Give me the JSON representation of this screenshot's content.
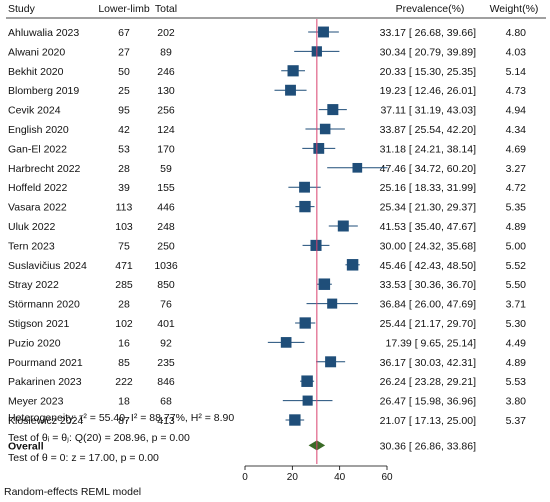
{
  "chart_data": {
    "type": "forest",
    "columns": {
      "study": "Study",
      "events": "Lower-limb",
      "total": "Total",
      "effect": "Prevalence(%)",
      "weight": "Weight(%)"
    },
    "xlim": [
      0,
      60
    ],
    "x_ticks": [
      "0",
      "20",
      "40",
      "60"
    ],
    "reference_line": 30.36,
    "studies": [
      {
        "name": "Ahluwalia 2023",
        "events": "67",
        "total": "202",
        "est": 33.17,
        "lo": 26.68,
        "hi": 39.66,
        "ci_text": "33.17 [ 26.68, 39.66]",
        "weight": "4.80"
      },
      {
        "name": "Alwani 2020",
        "events": "27",
        "total": "89",
        "est": 30.34,
        "lo": 20.79,
        "hi": 39.89,
        "ci_text": "30.34 [ 20.79, 39.89]",
        "weight": "4.03"
      },
      {
        "name": "Bekhit  2020",
        "events": "50",
        "total": "246",
        "est": 20.33,
        "lo": 15.3,
        "hi": 25.35,
        "ci_text": "20.33 [ 15.30, 25.35]",
        "weight": "5.14"
      },
      {
        "name": "Blomberg 2019",
        "events": "25",
        "total": "130",
        "est": 19.23,
        "lo": 12.46,
        "hi": 26.01,
        "ci_text": "19.23 [ 12.46, 26.01]",
        "weight": "4.73"
      },
      {
        "name": "Cevik 2024",
        "events": "95",
        "total": "256",
        "est": 37.11,
        "lo": 31.19,
        "hi": 43.03,
        "ci_text": "37.11 [ 31.19, 43.03]",
        "weight": "4.94"
      },
      {
        "name": "English  2020",
        "events": "42",
        "total": "124",
        "est": 33.87,
        "lo": 25.54,
        "hi": 42.2,
        "ci_text": "33.87 [ 25.54, 42.20]",
        "weight": "4.34"
      },
      {
        "name": "Gan-El 2022",
        "events": "53",
        "total": "170",
        "est": 31.18,
        "lo": 24.21,
        "hi": 38.14,
        "ci_text": "31.18 [ 24.21, 38.14]",
        "weight": "4.69"
      },
      {
        "name": "Harbrecht 2022",
        "events": "28",
        "total": "59",
        "est": 47.46,
        "lo": 34.72,
        "hi": 60.2,
        "ci_text": "47.46 [ 34.72, 60.20]",
        "weight": "3.27"
      },
      {
        "name": "Hoffeld 2022",
        "events": "39",
        "total": "155",
        "est": 25.16,
        "lo": 18.33,
        "hi": 31.99,
        "ci_text": "25.16 [ 18.33, 31.99]",
        "weight": "4.72"
      },
      {
        "name": "Vasara 2022",
        "events": "113",
        "total": "446",
        "est": 25.34,
        "lo": 21.3,
        "hi": 29.37,
        "ci_text": "25.34 [ 21.30, 29.37]",
        "weight": "5.35"
      },
      {
        "name": "Uluk 2022",
        "events": "103",
        "total": "248",
        "est": 41.53,
        "lo": 35.4,
        "hi": 47.67,
        "ci_text": "41.53 [ 35.40, 47.67]",
        "weight": "4.89"
      },
      {
        "name": "Tern 2023",
        "events": "75",
        "total": "250",
        "est": 30.0,
        "lo": 24.32,
        "hi": 35.68,
        "ci_text": "30.00 [ 24.32, 35.68]",
        "weight": "5.00"
      },
      {
        "name": "Suslavičius 2024",
        "events": "471",
        "total": "1036",
        "est": 45.46,
        "lo": 42.43,
        "hi": 48.5,
        "ci_text": "45.46 [ 42.43, 48.50]",
        "weight": "5.52"
      },
      {
        "name": "Stray 2022",
        "events": "285",
        "total": "850",
        "est": 33.53,
        "lo": 30.36,
        "hi": 36.7,
        "ci_text": "33.53 [ 30.36, 36.70]",
        "weight": "5.50"
      },
      {
        "name": "Störmann 2020",
        "events": "28",
        "total": "76",
        "est": 36.84,
        "lo": 26.0,
        "hi": 47.69,
        "ci_text": "36.84 [ 26.00, 47.69]",
        "weight": "3.71"
      },
      {
        "name": "Stigson 2021",
        "events": "102",
        "total": "401",
        "est": 25.44,
        "lo": 21.17,
        "hi": 29.7,
        "ci_text": "25.44 [ 21.17, 29.70]",
        "weight": "5.30"
      },
      {
        "name": "Puzio 2020",
        "events": "16",
        "total": "92",
        "est": 17.39,
        "lo": 9.65,
        "hi": 25.14,
        "ci_text": "17.39 [  9.65, 25.14]",
        "weight": "4.49"
      },
      {
        "name": "Pourmand 2021",
        "events": "85",
        "total": "235",
        "est": 36.17,
        "lo": 30.03,
        "hi": 42.31,
        "ci_text": "36.17 [ 30.03, 42.31]",
        "weight": "4.89"
      },
      {
        "name": "Pakarinen 2023",
        "events": "222",
        "total": "846",
        "est": 26.24,
        "lo": 23.28,
        "hi": 29.21,
        "ci_text": "26.24 [ 23.28, 29.21]",
        "weight": "5.53"
      },
      {
        "name": "Meyer 2023",
        "events": "18",
        "total": "68",
        "est": 26.47,
        "lo": 15.98,
        "hi": 36.96,
        "ci_text": "26.47 [ 15.98, 36.96]",
        "weight": "3.80"
      },
      {
        "name": "Klosiewicz 2024",
        "events": "87",
        "total": "413",
        "est": 21.07,
        "lo": 17.13,
        "hi": 25.0,
        "ci_text": "21.07 [ 17.13, 25.00]",
        "weight": "5.37"
      }
    ],
    "overall": {
      "label": "Overall",
      "est": 30.36,
      "lo": 26.86,
      "hi": 33.86,
      "ci_text": "30.36 [ 26.86, 33.86]"
    },
    "stats": {
      "heterogeneity": "Heterogeneity: τ² = 55.40, I² = 88.77%, H² = 8.90",
      "test_equal": "Test of θᵢ = θⱼ: Q(20) = 208.96, p = 0.00",
      "test_zero": "Test of θ = 0: z = 17.00, p = 0.00"
    },
    "model_note": "Random-effects REML model",
    "colors": {
      "square": "#1f4e79",
      "ci_line": "#1f4e79",
      "diamond": "#3a6b27",
      "reference": "#d9426e",
      "rule": "#000000"
    }
  }
}
